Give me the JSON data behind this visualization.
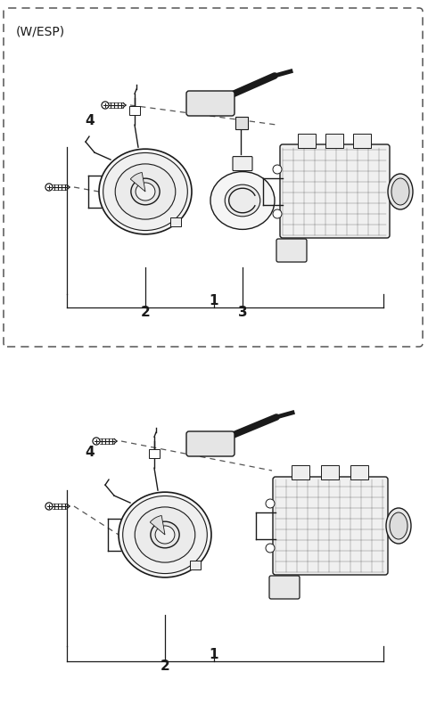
{
  "bg_color": "#ffffff",
  "line_color": "#1a1a1a",
  "dash_color": "#555555",
  "fig_width": 4.8,
  "fig_height": 8.09,
  "dpi": 100,
  "top_label": "(W/ESP)"
}
